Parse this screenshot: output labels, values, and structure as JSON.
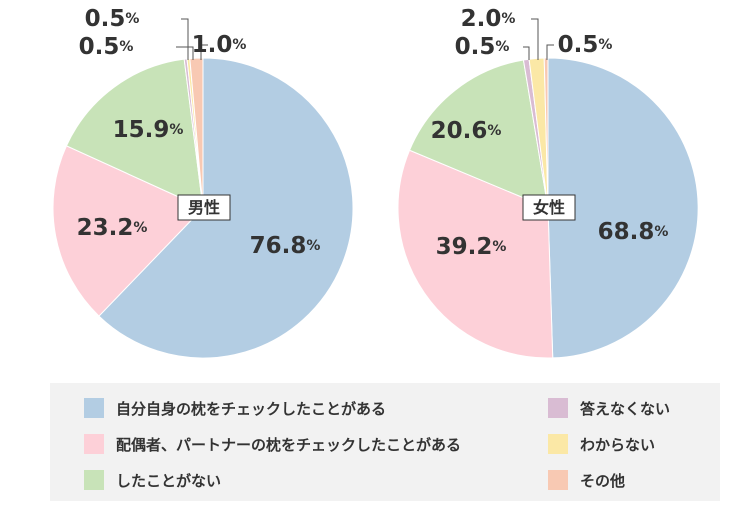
{
  "colors": {
    "checked_own": "#b3cde3",
    "checked_partner": "#fdd0d8",
    "never": "#c8e3b8",
    "no_answer": "#d9bcd3",
    "unknown": "#fbe8a6",
    "other": "#f8c9b3",
    "text": "#333333",
    "leader": "#555555"
  },
  "legend": {
    "items": [
      {
        "label": "自分自身の枕をチェックしたことがある",
        "color": "#b3cde3",
        "icon": "square-swatch"
      },
      {
        "label": "配偶者、パートナーの枕をチェックしたことがある",
        "color": "#fdd0d8",
        "icon": "square-swatch"
      },
      {
        "label": "したことがない",
        "color": "#c8e3b8",
        "icon": "square-swatch"
      },
      {
        "label": "答えなくない",
        "color": "#d9bcd3",
        "icon": "square-swatch"
      },
      {
        "label": "わからない",
        "color": "#fbe8a6",
        "icon": "square-swatch"
      },
      {
        "label": "その他",
        "color": "#f8c9b3",
        "icon": "square-swatch"
      }
    ]
  },
  "chart_data": [
    {
      "type": "pie",
      "title": "男性",
      "slices": [
        {
          "name": "自分自身の枕をチェックしたことがある",
          "label": "76.8",
          "arc_value": 62.2,
          "color": "#b3cde3"
        },
        {
          "name": "配偶者、パートナーの枕をチェックしたことがある",
          "label": "23.2",
          "arc_value": 19.6,
          "color": "#fdd0d8"
        },
        {
          "name": "したことがない",
          "label": "15.9",
          "arc_value": 16.2,
          "color": "#c8e3b8"
        },
        {
          "name": "答えなくない",
          "label": "0.5",
          "arc_value": 0.3,
          "color": "#d9bcd3"
        },
        {
          "name": "わからない",
          "label": "0.5",
          "arc_value": 0.3,
          "color": "#fbe8a6"
        },
        {
          "name": "その他",
          "label": "1.0",
          "arc_value": 1.4,
          "color": "#f8c9b3"
        }
      ],
      "unit": "%"
    },
    {
      "type": "pie",
      "title": "女性",
      "slices": [
        {
          "name": "自分自身の枕をチェックしたことがある",
          "label": "68.8",
          "arc_value": 49.2,
          "color": "#b3cde3"
        },
        {
          "name": "配偶者、パートナーの枕をチェックしたことがある",
          "label": "39.2",
          "arc_value": 31.6,
          "color": "#fdd0d8"
        },
        {
          "name": "したことがない",
          "label": "20.6",
          "arc_value": 16.0,
          "color": "#c8e3b8"
        },
        {
          "name": "答えなくない",
          "label": "0.5",
          "arc_value": 0.6,
          "color": "#d9bcd3"
        },
        {
          "name": "わからない",
          "label": "2.0",
          "arc_value": 1.6,
          "color": "#fbe8a6"
        },
        {
          "name": "その他",
          "label": "0.5",
          "arc_value": 0.4,
          "color": "#f8c9b3"
        }
      ],
      "unit": "%"
    }
  ]
}
